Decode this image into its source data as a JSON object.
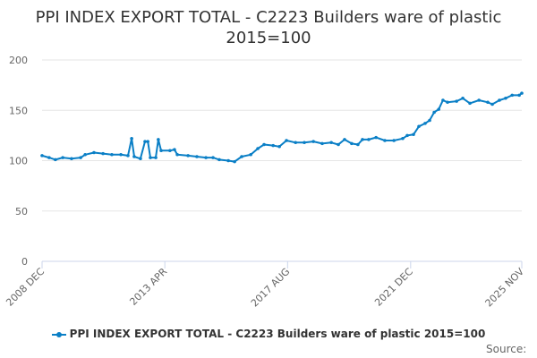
{
  "chart_data": {
    "type": "line",
    "title": "PPI INDEX EXPORT TOTAL - C2223 Builders ware of plastic",
    "subtitle": "2015=100",
    "xlabel": "",
    "ylabel": "",
    "ylim": [
      0,
      200
    ],
    "xlim": [
      2008.92,
      2025.84
    ],
    "yticks": [
      0,
      50,
      100,
      150,
      200
    ],
    "xticks": [
      {
        "label": "2008 DEC",
        "value": 2008.92
      },
      {
        "label": "2013 APR",
        "value": 2013.25
      },
      {
        "label": "2017 AUG",
        "value": 2017.58
      },
      {
        "label": "2021 DEC",
        "value": 2021.92
      },
      {
        "label": "2025 NOV",
        "value": 2025.84
      }
    ],
    "grid": true,
    "legend": "bottom",
    "series": [
      {
        "name": "PPI INDEX EXPORT TOTAL - C2223 Builders ware of plastic 2015=100",
        "color": "#0a7fc6",
        "x": [
          2008.92,
          2009.17,
          2009.39,
          2009.65,
          2009.96,
          2010.28,
          2010.44,
          2010.75,
          2011.07,
          2011.38,
          2011.7,
          2011.95,
          2012.08,
          2012.17,
          2012.39,
          2012.55,
          2012.65,
          2012.74,
          2012.93,
          2013.02,
          2013.12,
          2013.43,
          2013.59,
          2013.69,
          2014.07,
          2014.38,
          2014.7,
          2014.95,
          2015.17,
          2015.49,
          2015.71,
          2015.96,
          2016.28,
          2016.53,
          2016.75,
          2017.07,
          2017.29,
          2017.54,
          2017.86,
          2018.17,
          2018.49,
          2018.8,
          2019.12,
          2019.37,
          2019.59,
          2019.84,
          2020.06,
          2020.22,
          2020.44,
          2020.7,
          2021.01,
          2021.33,
          2021.64,
          2021.8,
          2022.02,
          2022.21,
          2022.43,
          2022.59,
          2022.75,
          2022.91,
          2023.06,
          2023.22,
          2023.54,
          2023.76,
          2024.01,
          2024.33,
          2024.64,
          2024.8,
          2025.05,
          2025.27,
          2025.5,
          2025.75,
          2025.84
        ],
        "values": [
          105,
          103,
          101,
          103,
          102,
          103,
          106,
          108,
          107,
          106,
          106,
          105,
          122,
          104,
          102,
          119,
          119,
          103,
          103,
          121,
          110,
          110,
          111,
          106,
          105,
          104,
          103,
          103,
          101,
          100,
          99,
          104,
          106,
          112,
          116,
          115,
          114,
          120,
          118,
          118,
          119,
          117,
          118,
          116,
          121,
          117,
          116,
          121,
          121,
          123,
          120,
          120,
          122,
          125,
          126,
          134,
          137,
          140,
          148,
          151,
          160,
          158,
          159,
          162,
          157,
          160,
          158,
          156,
          160,
          162,
          165,
          165,
          167
        ]
      }
    ]
  },
  "source_label": "Source:"
}
